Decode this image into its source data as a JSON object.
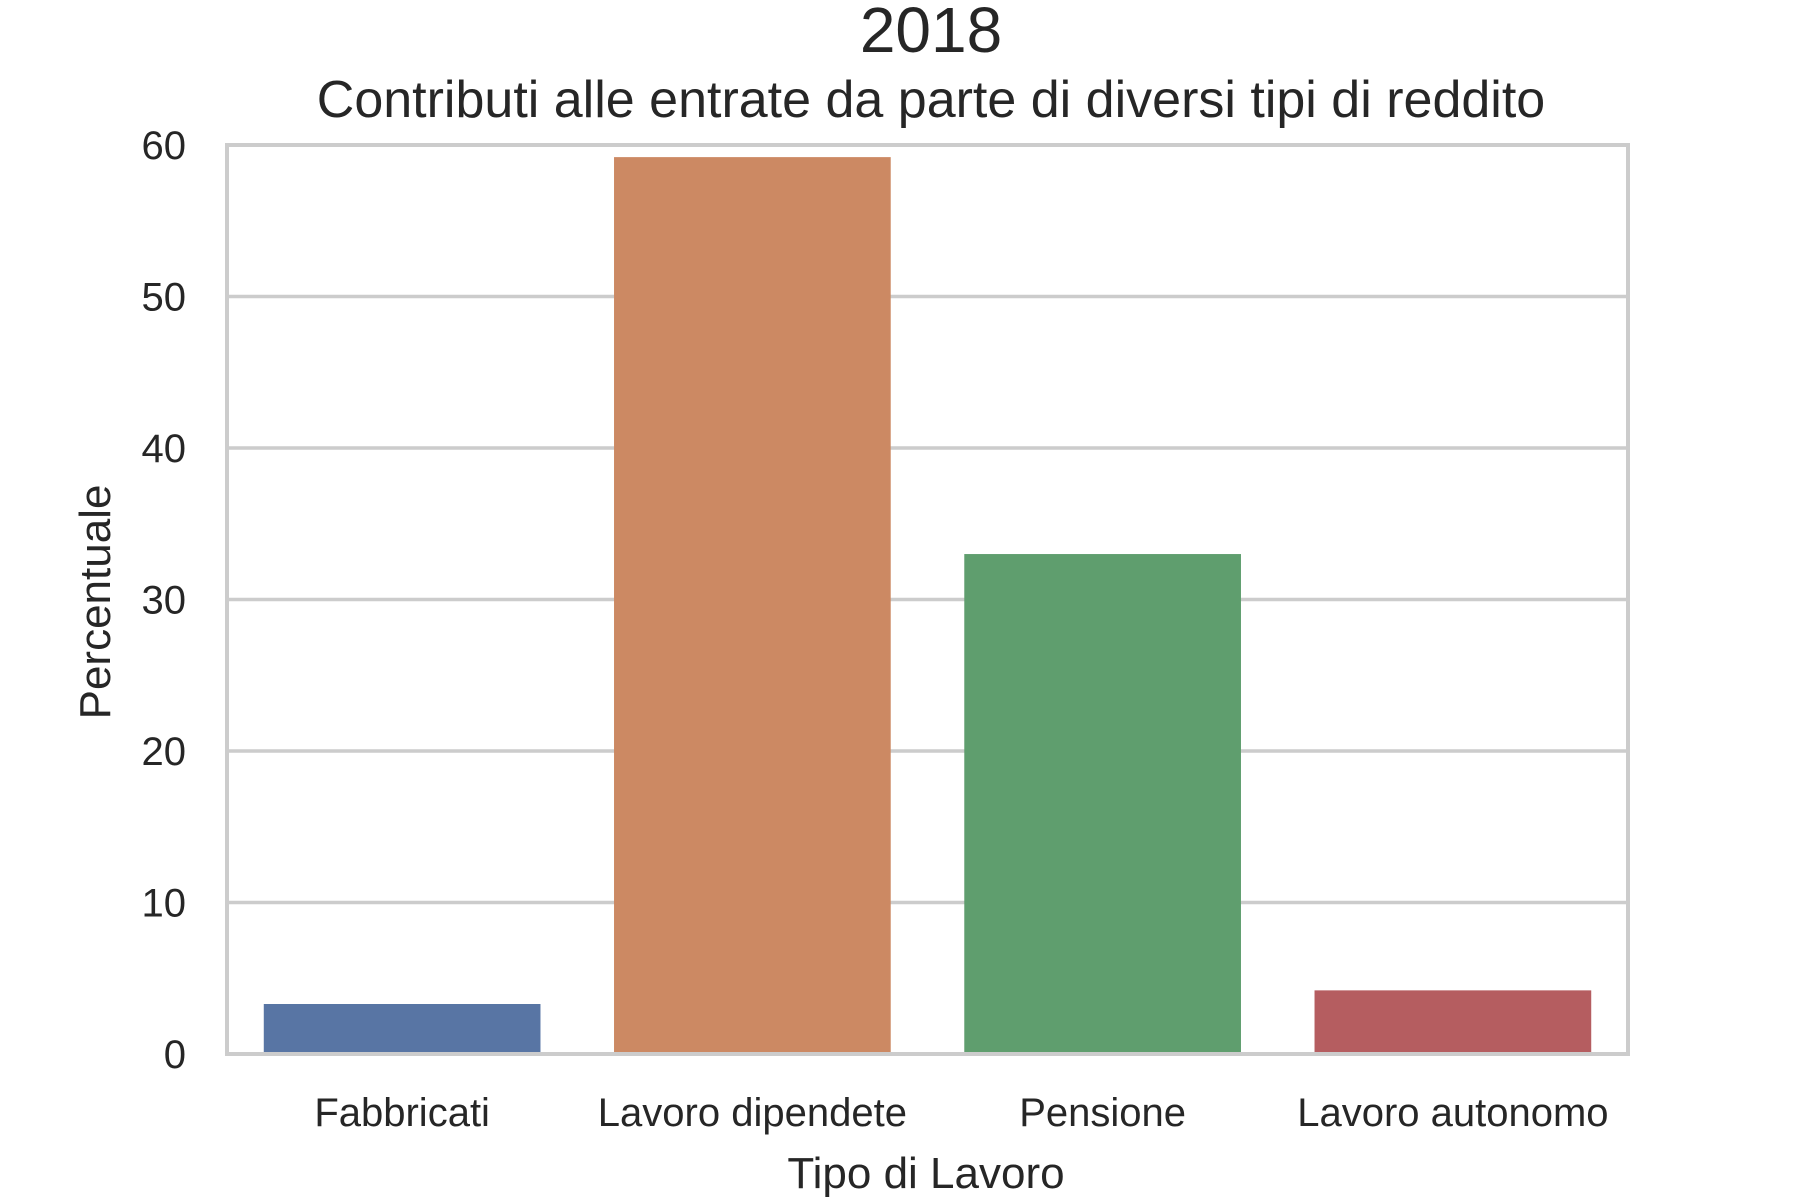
{
  "chart_data": {
    "type": "bar",
    "title": "2018",
    "subtitle": "Contributi alle entrate da parte di diversi tipi di reddito",
    "xlabel": "Tipo di Lavoro",
    "ylabel": "Percentuale",
    "categories": [
      "Fabbricati",
      "Lavoro dipendete",
      "Pensione",
      "Lavoro autonomo"
    ],
    "values": [
      3.3,
      59.2,
      33.0,
      4.2
    ],
    "colors": [
      "#5875a4",
      "#cc8963",
      "#5f9e6e",
      "#b55d60"
    ],
    "ylim": [
      0,
      60
    ],
    "yticks": [
      "0",
      "10",
      "20",
      "30",
      "40",
      "50",
      "60"
    ],
    "grid": true,
    "legend": "none"
  }
}
